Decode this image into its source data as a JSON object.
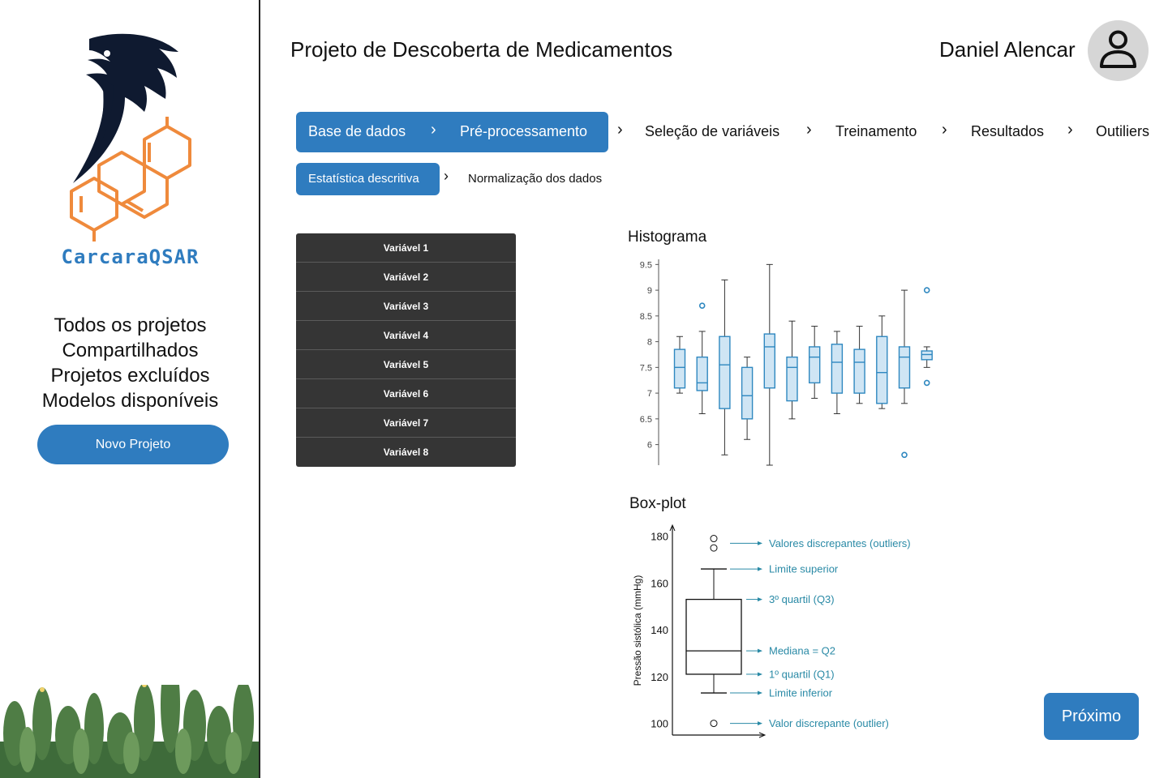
{
  "app": {
    "brand": "CarcaraQSAR",
    "project_title": "Projeto de Descoberta de Medicamentos",
    "user_name": "Daniel Alencar",
    "accent_color": "#2f7cbf"
  },
  "sidebar": {
    "items": [
      {
        "label": "Todos os projetos"
      },
      {
        "label": "Compartilhados"
      },
      {
        "label": "Projetos excluídos"
      },
      {
        "label": "Modelos disponíveis"
      }
    ],
    "new_project_label": "Novo Projeto"
  },
  "steps": [
    {
      "label": "Base de dados",
      "active": true
    },
    {
      "label": "Pré-processamento",
      "active": true
    },
    {
      "label": "Seleção de variáveis",
      "active": false
    },
    {
      "label": "Treinamento",
      "active": false
    },
    {
      "label": "Resultados",
      "active": false
    },
    {
      "label": "Outiliers",
      "active": false
    }
  ],
  "sub_steps": [
    {
      "label": "Estatística descritiva",
      "active": true
    },
    {
      "label": "Normalização dos dados",
      "active": false
    }
  ],
  "variables": [
    "Variável 1",
    "Variável 2",
    "Variável 3",
    "Variável 4",
    "Variável 5",
    "Variável 6",
    "Variável 7",
    "Variável 8"
  ],
  "histogram": {
    "title": "Histograma"
  },
  "boxplot_section": {
    "title": "Box-plot"
  },
  "next_label": "Próximo",
  "chart_data": [
    {
      "type": "boxplot",
      "title": "",
      "yticks": [
        "9.5",
        "9",
        "8.5",
        "8",
        "7.5",
        "7",
        "6.5",
        "6"
      ],
      "ylim": [
        5.6,
        9.6
      ],
      "color": "#2f88c0",
      "boxes": [
        {
          "whislo": 7.0,
          "q1": 7.1,
          "med": 7.5,
          "q3": 7.85,
          "whishi": 8.1,
          "fliers": []
        },
        {
          "whislo": 6.6,
          "q1": 7.05,
          "med": 7.2,
          "q3": 7.7,
          "whishi": 8.2,
          "fliers": [
            8.7
          ]
        },
        {
          "whislo": 5.8,
          "q1": 6.7,
          "med": 7.55,
          "q3": 8.1,
          "whishi": 9.2,
          "fliers": []
        },
        {
          "whislo": 6.1,
          "q1": 6.5,
          "med": 6.95,
          "q3": 7.5,
          "whishi": 7.7,
          "fliers": []
        },
        {
          "whislo": 5.6,
          "q1": 7.1,
          "med": 7.9,
          "q3": 8.15,
          "whishi": 9.5,
          "fliers": []
        },
        {
          "whislo": 6.5,
          "q1": 6.85,
          "med": 7.5,
          "q3": 7.7,
          "whishi": 8.4,
          "fliers": []
        },
        {
          "whislo": 6.9,
          "q1": 7.2,
          "med": 7.7,
          "q3": 7.9,
          "whishi": 8.3,
          "fliers": []
        },
        {
          "whislo": 6.6,
          "q1": 7.0,
          "med": 7.6,
          "q3": 7.95,
          "whishi": 8.2,
          "fliers": []
        },
        {
          "whislo": 6.8,
          "q1": 7.0,
          "med": 7.6,
          "q3": 7.85,
          "whishi": 8.3,
          "fliers": []
        },
        {
          "whislo": 6.7,
          "q1": 6.8,
          "med": 7.4,
          "q3": 8.1,
          "whishi": 8.5,
          "fliers": []
        },
        {
          "whislo": 6.8,
          "q1": 7.1,
          "med": 7.7,
          "q3": 7.9,
          "whishi": 9.0,
          "fliers": [
            5.8
          ]
        },
        {
          "whislo": 7.5,
          "q1": 7.65,
          "med": 7.75,
          "q3": 7.82,
          "whishi": 7.9,
          "fliers": [
            9.0,
            7.2
          ]
        }
      ]
    },
    {
      "type": "boxplot",
      "title": "",
      "ylabel": "Pressão sistólica (mmHg)",
      "yticks": [
        180,
        160,
        140,
        120,
        100
      ],
      "ylim": [
        95,
        183
      ],
      "box": {
        "whislo": 113,
        "q1": 121,
        "med": 131,
        "q3": 153,
        "whishi": 166,
        "fliers": [
          179,
          175,
          100
        ]
      },
      "annotations": [
        {
          "text": "Valores discrepantes (outliers)",
          "y": 177
        },
        {
          "text": "Limite superior",
          "y": 166
        },
        {
          "text": "3º quartil (Q3)",
          "y": 153
        },
        {
          "text": "Mediana = Q2",
          "y": 131
        },
        {
          "text": "1º quartil (Q1)",
          "y": 121
        },
        {
          "text": "Limite inferior",
          "y": 113
        },
        {
          "text": "Valor discrepante (outlier)",
          "y": 100
        }
      ],
      "annotation_color": "#2a8aa6"
    }
  ]
}
